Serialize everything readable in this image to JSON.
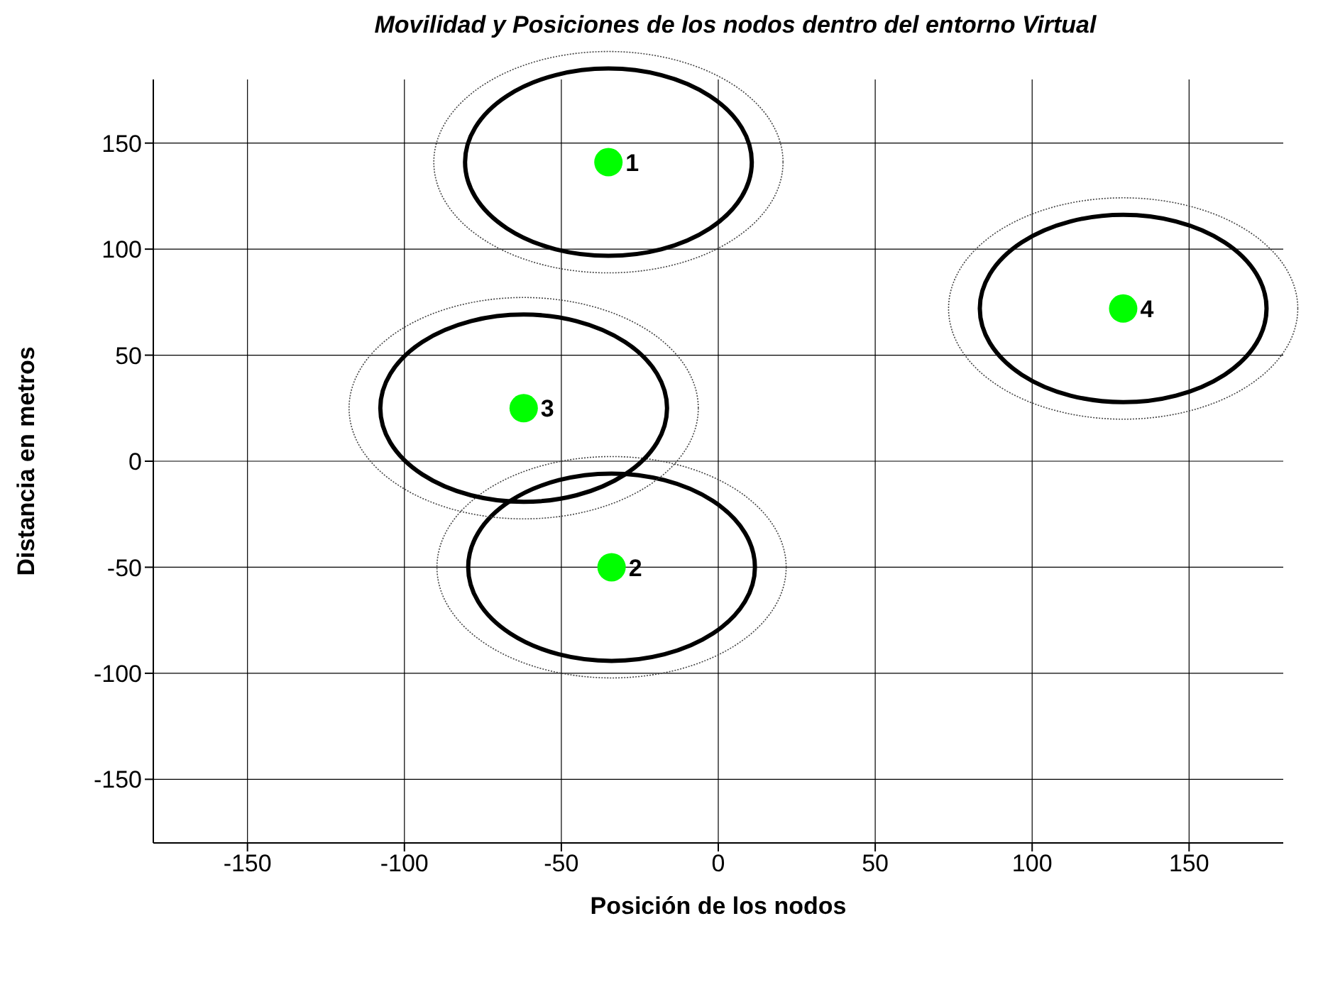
{
  "chart_data": {
    "type": "scatter",
    "title": "Movilidad y Posiciones de los nodos dentro del entorno Virtual",
    "xlabel": "Posición de los nodos",
    "ylabel": "Distancia en metros",
    "xlim": [
      -180,
      180
    ],
    "ylim": [
      -180,
      180
    ],
    "xticks": [
      -150,
      -100,
      -50,
      0,
      50,
      100,
      150
    ],
    "yticks": [
      -150,
      -100,
      -50,
      0,
      50,
      100,
      150
    ],
    "grid": true,
    "series": [
      {
        "color": "#00ff00",
        "marker": "circle",
        "x": [
          -35,
          -34,
          -62,
          129
        ],
        "values": [
          141,
          -50,
          25,
          72
        ]
      }
    ],
    "annotations": [
      {
        "text": "1",
        "x": -35,
        "y": 141
      },
      {
        "text": "2",
        "x": -34,
        "y": -50
      },
      {
        "text": "3",
        "x": -62,
        "y": 25
      },
      {
        "text": "4",
        "x": 129,
        "y": 72
      }
    ]
  }
}
